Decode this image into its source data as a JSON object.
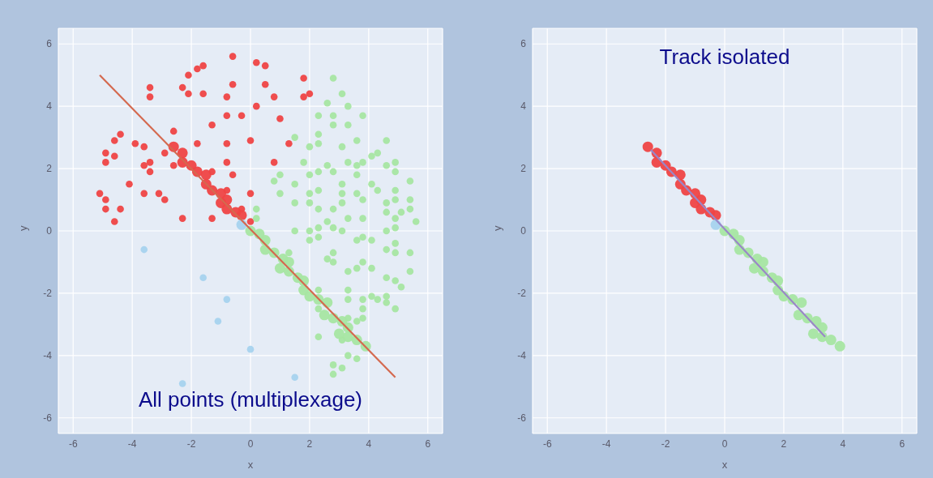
{
  "chart_data": [
    {
      "type": "scatter",
      "xlabel": "x",
      "ylabel": "y",
      "annotations": [
        "All points (multiplexage)"
      ],
      "xlim": [
        -6.5,
        6.5
      ],
      "ylim": [
        -6.5,
        6.5
      ],
      "xticks": [
        -6,
        -4,
        -2,
        0,
        2,
        4,
        6
      ],
      "yticks": [
        -6,
        -4,
        -2,
        0,
        2,
        4,
        6
      ],
      "grid": true,
      "marker": "circle",
      "series": [
        {
          "color": "#ef4444",
          "x": [
            -0.6,
            -2.1,
            -1.8,
            -1.6,
            -3.4,
            -3.4,
            -2.3,
            -2.1,
            -1.6,
            -0.6,
            -0.8,
            0.2,
            0.2,
            -0.8,
            -0.3,
            -1.3,
            -2.6,
            0.0,
            -4.6,
            -4.4,
            -3.9,
            -3.6,
            -2.9,
            -1.8,
            -0.8,
            -4.9,
            -4.9,
            -4.6,
            -3.6,
            -3.4,
            -3.4,
            -2.6,
            -0.8,
            -1.3,
            -0.6,
            -4.1,
            -5.1,
            -4.9,
            -3.6,
            -3.1,
            -2.9,
            -0.8,
            0.0,
            -4.9,
            -4.4,
            -0.3,
            -4.6,
            -2.3,
            -1.3,
            0.0,
            0.5,
            0.5,
            0.8,
            1.0,
            1.3,
            1.8,
            2.0,
            1.8,
            0.8
          ],
          "values": [
            5.6,
            5.0,
            5.2,
            5.3,
            4.6,
            4.3,
            4.6,
            4.4,
            4.4,
            4.7,
            4.3,
            4.0,
            5.4,
            3.7,
            3.7,
            3.4,
            3.2,
            2.9,
            2.9,
            3.1,
            2.8,
            2.7,
            2.5,
            2.8,
            2.8,
            2.5,
            2.2,
            2.4,
            2.1,
            2.2,
            1.9,
            2.1,
            2.2,
            1.9,
            1.8,
            1.5,
            1.2,
            1.0,
            1.2,
            1.2,
            1.0,
            1.3,
            1.2,
            0.7,
            0.7,
            0.7,
            0.3,
            0.4,
            0.4,
            0.3,
            5.3,
            4.7,
            4.3,
            3.6,
            2.8,
            4.9,
            4.4,
            4.3,
            2.2
          ]
        },
        {
          "color": "#a6e6a2",
          "x": [
            2.8,
            3.1,
            2.6,
            3.3,
            2.3,
            2.8,
            3.8,
            2.8,
            3.3,
            2.3,
            1.5,
            2.3,
            2.0,
            3.1,
            3.6,
            4.6,
            4.3,
            4.1,
            3.8,
            3.6,
            3.3,
            2.6,
            2.3,
            2.8,
            4.6,
            4.9,
            4.9,
            1.8,
            1.0,
            0.8,
            2.0,
            3.6,
            1.5,
            3.1,
            4.1,
            5.4,
            2.3,
            4.3,
            4.9,
            1.0,
            2.0,
            3.1,
            3.6,
            3.8,
            4.9,
            5.4,
            1.5,
            2.0,
            3.1,
            4.6,
            2.3,
            2.8,
            5.4,
            4.6,
            5.1,
            3.3,
            3.8,
            4.9,
            5.6,
            0.2,
            0.2,
            2.6,
            2.3,
            2.8,
            4.9,
            1.5,
            2.0,
            3.1,
            4.6,
            2.3,
            3.6,
            3.8,
            4.1,
            2.0,
            4.6,
            4.9,
            4.9,
            5.4,
            2.6,
            2.8,
            2.8,
            3.3,
            3.6,
            3.8,
            4.1,
            4.6,
            4.9,
            5.1,
            5.4,
            1.3,
            2.3,
            3.3,
            3.3,
            3.8,
            4.1,
            4.3,
            4.6,
            4.6,
            4.9,
            3.8,
            3.8,
            3.3,
            3.6,
            2.3,
            2.3,
            3.1,
            3.3,
            3.6,
            2.8,
            3.1,
            2.8
          ],
          "values": [
            4.9,
            4.4,
            4.1,
            4.0,
            3.7,
            3.7,
            3.7,
            3.4,
            3.4,
            3.1,
            3.0,
            2.8,
            2.7,
            2.7,
            2.9,
            2.9,
            2.5,
            2.4,
            2.2,
            2.1,
            2.2,
            2.1,
            1.9,
            1.9,
            2.1,
            2.2,
            1.9,
            2.2,
            1.8,
            1.6,
            1.8,
            1.8,
            1.5,
            1.5,
            1.5,
            1.6,
            1.3,
            1.3,
            1.3,
            1.2,
            1.2,
            1.2,
            1.2,
            1.0,
            1.0,
            1.0,
            0.9,
            0.9,
            0.9,
            0.9,
            0.7,
            0.7,
            0.7,
            0.6,
            0.6,
            0.4,
            0.4,
            0.4,
            0.3,
            0.7,
            0.4,
            0.3,
            0.1,
            0.1,
            0.1,
            0.0,
            0.0,
            0.0,
            0.0,
            -0.2,
            -0.3,
            -0.2,
            -0.3,
            -0.3,
            -0.6,
            -0.4,
            -0.7,
            -0.7,
            -0.9,
            -0.7,
            -1.0,
            -1.3,
            -1.2,
            -1.0,
            -1.2,
            -1.5,
            -1.6,
            -1.8,
            -1.3,
            -0.7,
            -1.9,
            -1.9,
            -2.2,
            -2.2,
            -2.1,
            -2.2,
            -2.1,
            -2.3,
            -2.5,
            -2.5,
            -2.8,
            -2.8,
            -2.9,
            -2.5,
            -3.4,
            -3.5,
            -4.0,
            -4.1,
            -4.3,
            -4.4,
            -4.6
          ]
        },
        {
          "color": "#a7d3ee",
          "x": [
            -3.6,
            -1.6,
            -0.8,
            -1.1,
            0.0,
            -2.3,
            1.5
          ],
          "values": [
            -0.6,
            -1.5,
            -2.2,
            -2.9,
            -3.8,
            -4.9,
            -4.7
          ]
        },
        {
          "type": "bubble",
          "color": "#ef4444",
          "x": [
            -2.6,
            -2.3,
            -2.3,
            -2.0,
            -1.8,
            -1.5,
            -1.5,
            -1.3,
            -1.0,
            -0.8,
            -1.0,
            -0.8,
            -0.5,
            -0.3
          ],
          "values": [
            2.7,
            2.5,
            2.2,
            2.1,
            1.9,
            1.8,
            1.5,
            1.3,
            1.2,
            1.0,
            0.9,
            0.7,
            0.6,
            0.5
          ],
          "sizes": [
            1,
            1,
            1,
            1,
            1,
            1,
            1,
            1,
            1,
            1,
            1,
            1,
            1,
            1
          ]
        },
        {
          "type": "bubble",
          "color": "#a7d3ee",
          "x": [
            -0.3
          ],
          "values": [
            0.2
          ],
          "sizes": [
            1
          ]
        },
        {
          "type": "bubble",
          "color": "#a6e6a2",
          "x": [
            0.0,
            0.3,
            0.5,
            0.5,
            0.8,
            1.1,
            1.3,
            1.0,
            1.3,
            1.6,
            1.8,
            1.8,
            2.0,
            2.3,
            2.6,
            2.5,
            2.8,
            3.1,
            3.3,
            3.0,
            3.3,
            3.6,
            3.9
          ],
          "values": [
            0.0,
            -0.1,
            -0.3,
            -0.6,
            -0.7,
            -0.9,
            -1.0,
            -1.2,
            -1.3,
            -1.5,
            -1.6,
            -1.9,
            -2.1,
            -2.2,
            -2.3,
            -2.7,
            -2.8,
            -2.9,
            -3.1,
            -3.3,
            -3.4,
            -3.5,
            -3.7
          ],
          "sizes": [
            1,
            1,
            1,
            1,
            1,
            1,
            1,
            1,
            1,
            1,
            1,
            1,
            1,
            1,
            1,
            1,
            1,
            1,
            1,
            1,
            1,
            1,
            1
          ]
        },
        {
          "type": "line",
          "marker": "none",
          "color": "#d4694f",
          "x": [
            -5.1,
            4.9
          ],
          "values": [
            5.0,
            -4.7
          ]
        }
      ]
    },
    {
      "type": "bubble",
      "xlabel": "x",
      "ylabel": "y",
      "annotations": [
        "Track isolated"
      ],
      "xlim": [
        -6.5,
        6.5
      ],
      "ylim": [
        -6.5,
        6.5
      ],
      "xticks": [
        -6,
        -4,
        -2,
        0,
        2,
        4,
        6
      ],
      "yticks": [
        -6,
        -4,
        -2,
        0,
        2,
        4,
        6
      ],
      "grid": true,
      "series": [
        {
          "color": "#ef4444",
          "x": [
            -2.6,
            -2.3,
            -2.3,
            -2.0,
            -1.8,
            -1.5,
            -1.5,
            -1.3,
            -1.0,
            -0.8,
            -1.0,
            -0.8,
            -0.5,
            -0.3
          ],
          "values": [
            2.7,
            2.5,
            2.2,
            2.1,
            1.9,
            1.8,
            1.5,
            1.3,
            1.2,
            1.0,
            0.9,
            0.7,
            0.6,
            0.5
          ],
          "sizes": [
            1,
            1,
            1,
            1,
            1,
            1,
            1,
            1,
            1,
            1,
            1,
            1,
            1,
            1
          ]
        },
        {
          "color": "#a7d3ee",
          "x": [
            -0.3
          ],
          "values": [
            0.2
          ],
          "sizes": [
            1
          ]
        },
        {
          "color": "#a6e6a2",
          "x": [
            0.0,
            0.3,
            0.5,
            0.5,
            0.8,
            1.1,
            1.3,
            1.0,
            1.3,
            1.6,
            1.8,
            1.8,
            2.0,
            2.3,
            2.6,
            2.5,
            2.8,
            3.1,
            3.3,
            3.0,
            3.3,
            3.6,
            3.9
          ],
          "values": [
            0.0,
            -0.1,
            -0.3,
            -0.6,
            -0.7,
            -0.9,
            -1.0,
            -1.2,
            -1.3,
            -1.5,
            -1.6,
            -1.9,
            -2.1,
            -2.2,
            -2.3,
            -2.7,
            -2.8,
            -2.9,
            -3.1,
            -3.3,
            -3.4,
            -3.5,
            -3.7
          ],
          "sizes": [
            1,
            1,
            1,
            1,
            1,
            1,
            1,
            1,
            1,
            1,
            1,
            1,
            1,
            1,
            1,
            1,
            1,
            1,
            1,
            1,
            1,
            1,
            1
          ]
        },
        {
          "type": "line",
          "marker": "none",
          "color": "#9a86c8",
          "x": [
            -2.5,
            3.4
          ],
          "values": [
            2.6,
            -3.4
          ]
        }
      ]
    }
  ]
}
